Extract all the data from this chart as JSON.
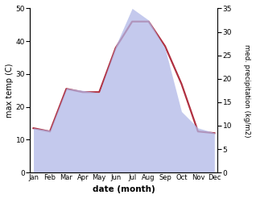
{
  "months": [
    "Jan",
    "Feb",
    "Mar",
    "Apr",
    "May",
    "Jun",
    "Jul",
    "Aug",
    "Sep",
    "Oct",
    "Nov",
    "Dec"
  ],
  "max_temp": [
    13.5,
    12.5,
    25.5,
    24.5,
    24.5,
    38.0,
    46.0,
    46.0,
    38.5,
    27.0,
    12.5,
    12.0
  ],
  "precipitation": [
    9.5,
    9.0,
    18.0,
    17.5,
    17.0,
    27.0,
    35.0,
    32.5,
    26.5,
    13.0,
    9.5,
    8.5
  ],
  "temp_color": "#b03040",
  "precip_fill_color": "#b0b8e8",
  "precip_fill_alpha": 0.75,
  "temp_ylim": [
    0,
    50
  ],
  "precip_ylim": [
    0,
    35
  ],
  "temp_yticks": [
    0,
    10,
    20,
    30,
    40,
    50
  ],
  "precip_yticks": [
    0,
    5,
    10,
    15,
    20,
    25,
    30,
    35
  ],
  "ylabel_left": "max temp (C)",
  "ylabel_right": "med. precipitation (kg/m2)",
  "xlabel": "date (month)",
  "background_color": "#ffffff",
  "line_width": 1.6
}
